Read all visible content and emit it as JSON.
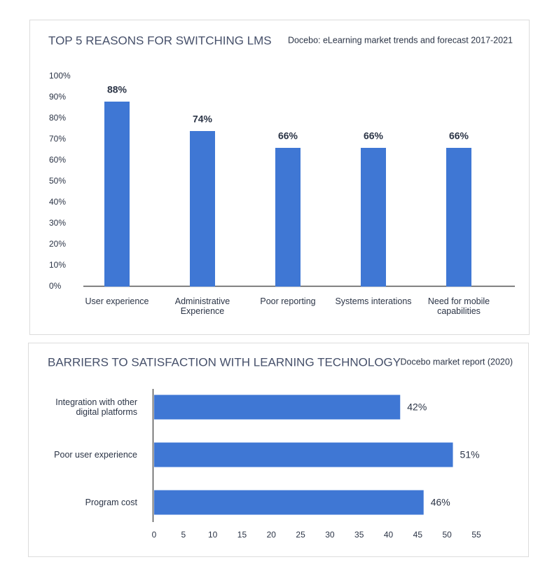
{
  "chart_data": [
    {
      "type": "bar",
      "title": "TOP 5 REASONS FOR SWITCHING LMS",
      "subtitle": "Docebo: eLearning market trends and forecast 2017-2021",
      "categories": [
        "User experience",
        "Administrative Experience",
        "Poor reporting",
        "Systems interations",
        "Need for mobile capabilities"
      ],
      "values": [
        88,
        74,
        66,
        66,
        66
      ],
      "value_labels": [
        "88%",
        "74%",
        "66%",
        "66%",
        "66%"
      ],
      "color": "#3f77d4",
      "ylim": [
        0,
        100
      ],
      "yticks": [
        {
          "value": 0,
          "label": "0%"
        },
        {
          "value": 10,
          "label": "10%"
        },
        {
          "value": 20,
          "label": "20%"
        },
        {
          "value": 30,
          "label": "30%"
        },
        {
          "value": 40,
          "label": "40%"
        },
        {
          "value": 50,
          "label": "50%"
        },
        {
          "value": 60,
          "label": "60%"
        },
        {
          "value": 70,
          "label": "70%"
        },
        {
          "value": 80,
          "label": "80%"
        },
        {
          "value": 90,
          "label": "90%"
        },
        {
          "value": 100,
          "label": "100%"
        }
      ],
      "grid": false
    },
    {
      "type": "hbar",
      "title": "BARRIERS TO SATISFACTION WITH LEARNING TECHNOLOGY",
      "subtitle": "Docebo market report (2020)",
      "categories": [
        "Integration with other digital platforms",
        "Poor user experience",
        "Program cost"
      ],
      "values": [
        42,
        51,
        46
      ],
      "value_labels": [
        "42%",
        "51%",
        "46%"
      ],
      "color": "#3f77d4",
      "xlim": [
        0,
        55
      ],
      "xticks": [
        0,
        5,
        10,
        15,
        20,
        25,
        30,
        35,
        40,
        45,
        50,
        55
      ],
      "grid": false
    }
  ]
}
